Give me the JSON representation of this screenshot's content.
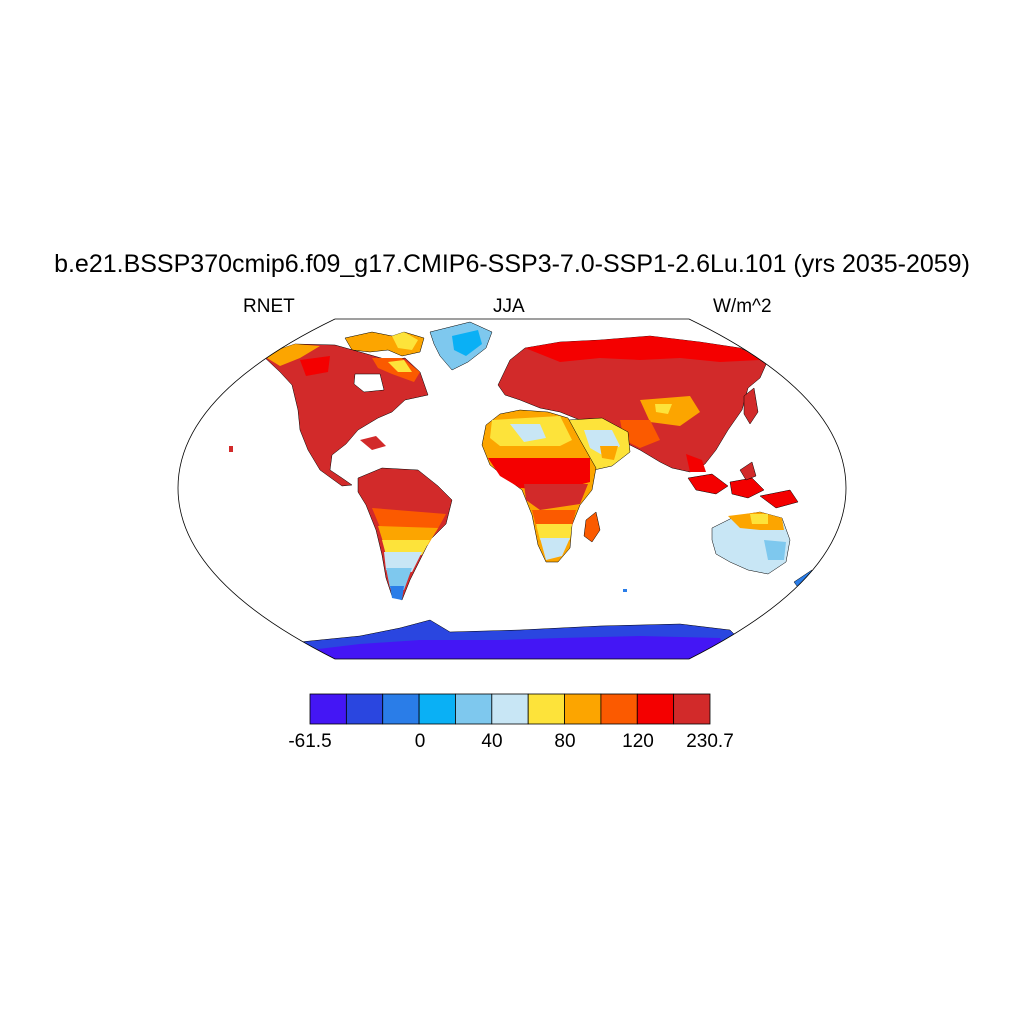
{
  "title": "b.e21.BSSP370cmip6.f09_g17.CMIP6-SSP3-7.0-SSP1-2.6Lu.101 (yrs 2035-2059)",
  "left_string": "RNET",
  "center_string": "JJA",
  "right_string": "W/m^2",
  "colorbar": {
    "colors": [
      "#4416f5",
      "#2a46e0",
      "#2a7de8",
      "#0ab0f5",
      "#7ec8ee",
      "#c8e6f5",
      "#fde33a",
      "#fca500",
      "#fb5a00",
      "#f40000",
      "#d22a2a"
    ],
    "labels": [
      "-61.5",
      "0",
      "40",
      "80",
      "120",
      "230.7"
    ]
  },
  "colors": {
    "land_edge": "#000000",
    "ocean": "#ffffff"
  }
}
